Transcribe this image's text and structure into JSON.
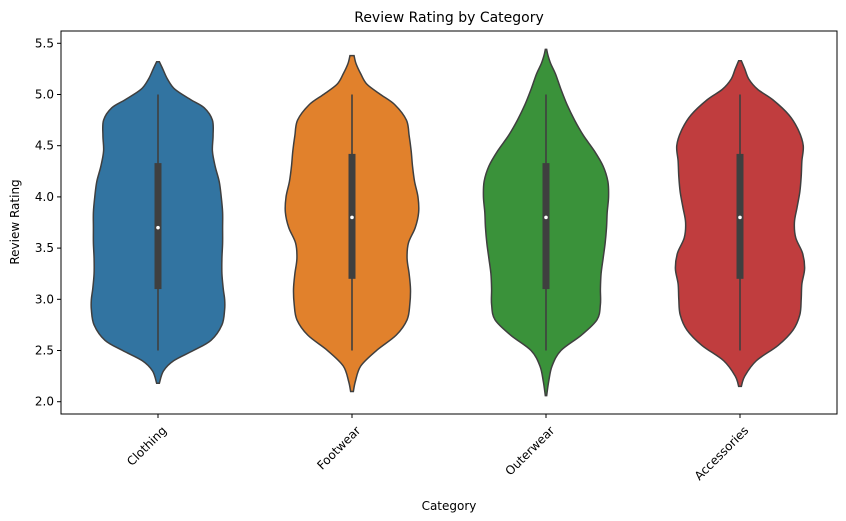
{
  "chart_data": {
    "type": "violin",
    "title": "Review Rating by Category",
    "xlabel": "Category",
    "ylabel": "Review Rating",
    "ylim": [
      1.88,
      5.62
    ],
    "yticks": [
      2.0,
      2.5,
      3.0,
      3.5,
      4.0,
      4.5,
      5.0,
      5.5
    ],
    "ytick_labels": [
      "2.0",
      "2.5",
      "3.0",
      "3.5",
      "4.0",
      "4.5",
      "5.0",
      "5.5"
    ],
    "categories": [
      "Clothing",
      "Footwear",
      "Outerwear",
      "Accessories"
    ],
    "colors": [
      "#3274a1",
      "#e1812c",
      "#3a923a",
      "#c03d3e"
    ],
    "grid": false,
    "series": [
      {
        "category": "Clothing",
        "min": 2.5,
        "q1": 3.1,
        "median": 3.7,
        "q3": 4.33,
        "max": 5.0,
        "density": [
          [
            2.18,
            0.02
          ],
          [
            2.3,
            0.08
          ],
          [
            2.4,
            0.23
          ],
          [
            2.5,
            0.52
          ],
          [
            2.6,
            0.78
          ],
          [
            2.75,
            0.94
          ],
          [
            2.9,
            0.98
          ],
          [
            3.0,
            0.98
          ],
          [
            3.1,
            0.96
          ],
          [
            3.25,
            0.94
          ],
          [
            3.4,
            0.94
          ],
          [
            3.55,
            0.95
          ],
          [
            3.7,
            0.95
          ],
          [
            3.85,
            0.95
          ],
          [
            4.0,
            0.93
          ],
          [
            4.15,
            0.9
          ],
          [
            4.3,
            0.84
          ],
          [
            4.45,
            0.8
          ],
          [
            4.6,
            0.81
          ],
          [
            4.75,
            0.8
          ],
          [
            4.87,
            0.68
          ],
          [
            4.95,
            0.48
          ],
          [
            5.05,
            0.25
          ],
          [
            5.15,
            0.14
          ],
          [
            5.25,
            0.07
          ],
          [
            5.32,
            0.02
          ]
        ]
      },
      {
        "category": "Footwear",
        "min": 2.5,
        "q1": 3.2,
        "median": 3.8,
        "q3": 4.42,
        "max": 5.0,
        "density": [
          [
            2.1,
            0.02
          ],
          [
            2.2,
            0.05
          ],
          [
            2.35,
            0.13
          ],
          [
            2.5,
            0.36
          ],
          [
            2.65,
            0.65
          ],
          [
            2.8,
            0.81
          ],
          [
            2.95,
            0.85
          ],
          [
            3.1,
            0.86
          ],
          [
            3.25,
            0.84
          ],
          [
            3.4,
            0.81
          ],
          [
            3.55,
            0.83
          ],
          [
            3.7,
            0.93
          ],
          [
            3.85,
            0.98
          ],
          [
            4.0,
            0.97
          ],
          [
            4.15,
            0.92
          ],
          [
            4.3,
            0.89
          ],
          [
            4.45,
            0.87
          ],
          [
            4.6,
            0.84
          ],
          [
            4.75,
            0.8
          ],
          [
            4.9,
            0.63
          ],
          [
            5.0,
            0.42
          ],
          [
            5.1,
            0.22
          ],
          [
            5.2,
            0.13
          ],
          [
            5.3,
            0.06
          ],
          [
            5.38,
            0.03
          ]
        ]
      },
      {
        "category": "Outerwear",
        "min": 2.5,
        "q1": 3.1,
        "median": 3.8,
        "q3": 4.33,
        "max": 5.0,
        "density": [
          [
            2.06,
            0.01
          ],
          [
            2.2,
            0.04
          ],
          [
            2.35,
            0.09
          ],
          [
            2.5,
            0.22
          ],
          [
            2.65,
            0.52
          ],
          [
            2.8,
            0.75
          ],
          [
            2.95,
            0.8
          ],
          [
            3.1,
            0.8
          ],
          [
            3.25,
            0.81
          ],
          [
            3.4,
            0.84
          ],
          [
            3.55,
            0.87
          ],
          [
            3.7,
            0.89
          ],
          [
            3.85,
            0.9
          ],
          [
            4.0,
            0.92
          ],
          [
            4.15,
            0.91
          ],
          [
            4.3,
            0.84
          ],
          [
            4.45,
            0.71
          ],
          [
            4.6,
            0.55
          ],
          [
            4.75,
            0.42
          ],
          [
            4.9,
            0.31
          ],
          [
            5.05,
            0.22
          ],
          [
            5.2,
            0.14
          ],
          [
            5.3,
            0.07
          ],
          [
            5.38,
            0.03
          ],
          [
            5.44,
            0.01
          ]
        ]
      },
      {
        "category": "Accessories",
        "min": 2.5,
        "q1": 3.2,
        "median": 3.8,
        "q3": 4.42,
        "max": 5.0,
        "density": [
          [
            2.15,
            0.02
          ],
          [
            2.25,
            0.07
          ],
          [
            2.4,
            0.24
          ],
          [
            2.55,
            0.56
          ],
          [
            2.7,
            0.78
          ],
          [
            2.85,
            0.88
          ],
          [
            3.0,
            0.9
          ],
          [
            3.15,
            0.91
          ],
          [
            3.3,
            0.95
          ],
          [
            3.45,
            0.92
          ],
          [
            3.6,
            0.82
          ],
          [
            3.75,
            0.8
          ],
          [
            3.9,
            0.84
          ],
          [
            4.05,
            0.88
          ],
          [
            4.2,
            0.9
          ],
          [
            4.35,
            0.91
          ],
          [
            4.5,
            0.93
          ],
          [
            4.65,
            0.86
          ],
          [
            4.8,
            0.72
          ],
          [
            4.95,
            0.48
          ],
          [
            5.05,
            0.26
          ],
          [
            5.15,
            0.13
          ],
          [
            5.25,
            0.07
          ],
          [
            5.33,
            0.02
          ]
        ]
      }
    ]
  }
}
